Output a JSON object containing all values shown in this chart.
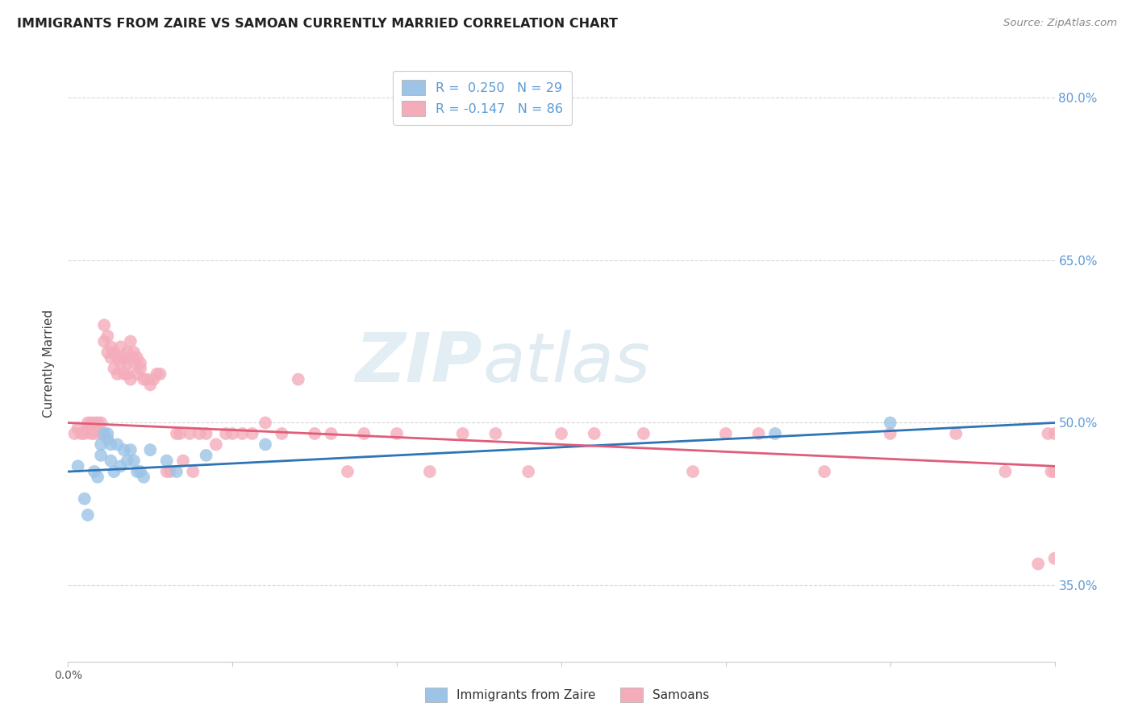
{
  "title": "IMMIGRANTS FROM ZAIRE VS SAMOAN CURRENTLY MARRIED CORRELATION CHART",
  "source": "Source: ZipAtlas.com",
  "ylabel": "Currently Married",
  "x_lim": [
    0.0,
    0.3
  ],
  "y_lim": [
    0.28,
    0.83
  ],
  "right_y_ticks": [
    0.35,
    0.5,
    0.65,
    0.8
  ],
  "right_y_tick_labels": [
    "35.0%",
    "50.0%",
    "65.0%",
    "80.0%"
  ],
  "right_axis_color": "#5b9bd5",
  "blue_color": "#9dc3e6",
  "pink_color": "#f4acbb",
  "blue_line_color": "#2e75b6",
  "pink_line_color": "#e05d7a",
  "watermark_zip": "ZIP",
  "watermark_atlas": "atlas",
  "legend_R_blue": "R =  0.250",
  "legend_N_blue": "N = 29",
  "legend_R_pink": "R = -0.147",
  "legend_N_pink": "N = 86",
  "blue_scatter_x": [
    0.003,
    0.005,
    0.006,
    0.008,
    0.009,
    0.01,
    0.01,
    0.011,
    0.012,
    0.012,
    0.013,
    0.013,
    0.014,
    0.015,
    0.016,
    0.017,
    0.018,
    0.019,
    0.02,
    0.021,
    0.022,
    0.023,
    0.025,
    0.03,
    0.033,
    0.042,
    0.06,
    0.215,
    0.25
  ],
  "blue_scatter_y": [
    0.46,
    0.43,
    0.415,
    0.455,
    0.45,
    0.48,
    0.47,
    0.49,
    0.49,
    0.485,
    0.465,
    0.48,
    0.455,
    0.48,
    0.46,
    0.475,
    0.465,
    0.475,
    0.465,
    0.455,
    0.455,
    0.45,
    0.475,
    0.465,
    0.455,
    0.47,
    0.48,
    0.49,
    0.5
  ],
  "pink_scatter_x": [
    0.002,
    0.003,
    0.004,
    0.005,
    0.006,
    0.006,
    0.007,
    0.007,
    0.008,
    0.008,
    0.009,
    0.01,
    0.01,
    0.011,
    0.011,
    0.012,
    0.012,
    0.013,
    0.013,
    0.014,
    0.014,
    0.015,
    0.015,
    0.016,
    0.016,
    0.017,
    0.017,
    0.018,
    0.018,
    0.018,
    0.019,
    0.019,
    0.02,
    0.02,
    0.021,
    0.021,
    0.022,
    0.022,
    0.023,
    0.024,
    0.025,
    0.026,
    0.027,
    0.028,
    0.03,
    0.031,
    0.033,
    0.034,
    0.035,
    0.037,
    0.038,
    0.04,
    0.042,
    0.045,
    0.048,
    0.05,
    0.053,
    0.056,
    0.06,
    0.065,
    0.07,
    0.075,
    0.08,
    0.085,
    0.09,
    0.1,
    0.11,
    0.12,
    0.13,
    0.14,
    0.15,
    0.16,
    0.175,
    0.19,
    0.2,
    0.21,
    0.23,
    0.25,
    0.27,
    0.285,
    0.295,
    0.298,
    0.299,
    0.3,
    0.3,
    0.3
  ],
  "pink_scatter_y": [
    0.49,
    0.495,
    0.49,
    0.49,
    0.495,
    0.5,
    0.49,
    0.5,
    0.49,
    0.5,
    0.5,
    0.49,
    0.5,
    0.575,
    0.59,
    0.565,
    0.58,
    0.56,
    0.57,
    0.55,
    0.565,
    0.56,
    0.545,
    0.57,
    0.555,
    0.56,
    0.545,
    0.565,
    0.555,
    0.545,
    0.575,
    0.54,
    0.565,
    0.555,
    0.545,
    0.56,
    0.555,
    0.55,
    0.54,
    0.54,
    0.535,
    0.54,
    0.545,
    0.545,
    0.455,
    0.455,
    0.49,
    0.49,
    0.465,
    0.49,
    0.455,
    0.49,
    0.49,
    0.48,
    0.49,
    0.49,
    0.49,
    0.49,
    0.5,
    0.49,
    0.54,
    0.49,
    0.49,
    0.455,
    0.49,
    0.49,
    0.455,
    0.49,
    0.49,
    0.455,
    0.49,
    0.49,
    0.49,
    0.455,
    0.49,
    0.49,
    0.455,
    0.49,
    0.49,
    0.455,
    0.37,
    0.49,
    0.455,
    0.455,
    0.49,
    0.375
  ]
}
